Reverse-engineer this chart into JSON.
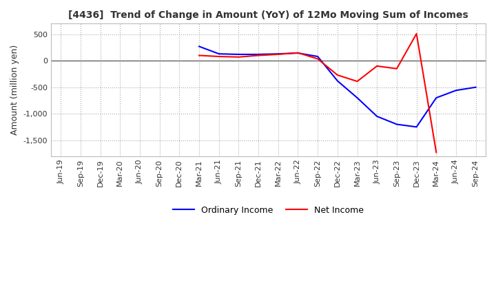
{
  "title": "[4436]  Trend of Change in Amount (YoY) of 12Mo Moving Sum of Incomes",
  "ylabel": "Amount (million yen)",
  "ylim": [
    -1800,
    700
  ],
  "yticks": [
    500,
    0,
    -500,
    -1000,
    -1500
  ],
  "background_color": "#ffffff",
  "grid_color": "#aaaaaa",
  "ordinary_income_color": "#0000ff",
  "net_income_color": "#ff0000",
  "x_labels": [
    "Jun-19",
    "Sep-19",
    "Dec-19",
    "Mar-20",
    "Jun-20",
    "Sep-20",
    "Dec-20",
    "Mar-21",
    "Jun-21",
    "Sep-21",
    "Dec-21",
    "Mar-22",
    "Jun-22",
    "Sep-22",
    "Dec-22",
    "Mar-23",
    "Jun-23",
    "Sep-23",
    "Dec-23",
    "Mar-24",
    "Jun-24",
    "Sep-24"
  ],
  "ordinary_income": [
    null,
    null,
    null,
    null,
    null,
    null,
    null,
    270,
    130,
    120,
    120,
    130,
    145,
    80,
    -380,
    -700,
    -1050,
    -1200,
    -1250,
    -700,
    -560,
    -500
  ],
  "net_income": [
    null,
    null,
    null,
    null,
    null,
    null,
    null,
    100,
    80,
    70,
    100,
    120,
    150,
    35,
    -270,
    -390,
    -100,
    -150,
    510,
    -1730,
    null,
    null
  ]
}
